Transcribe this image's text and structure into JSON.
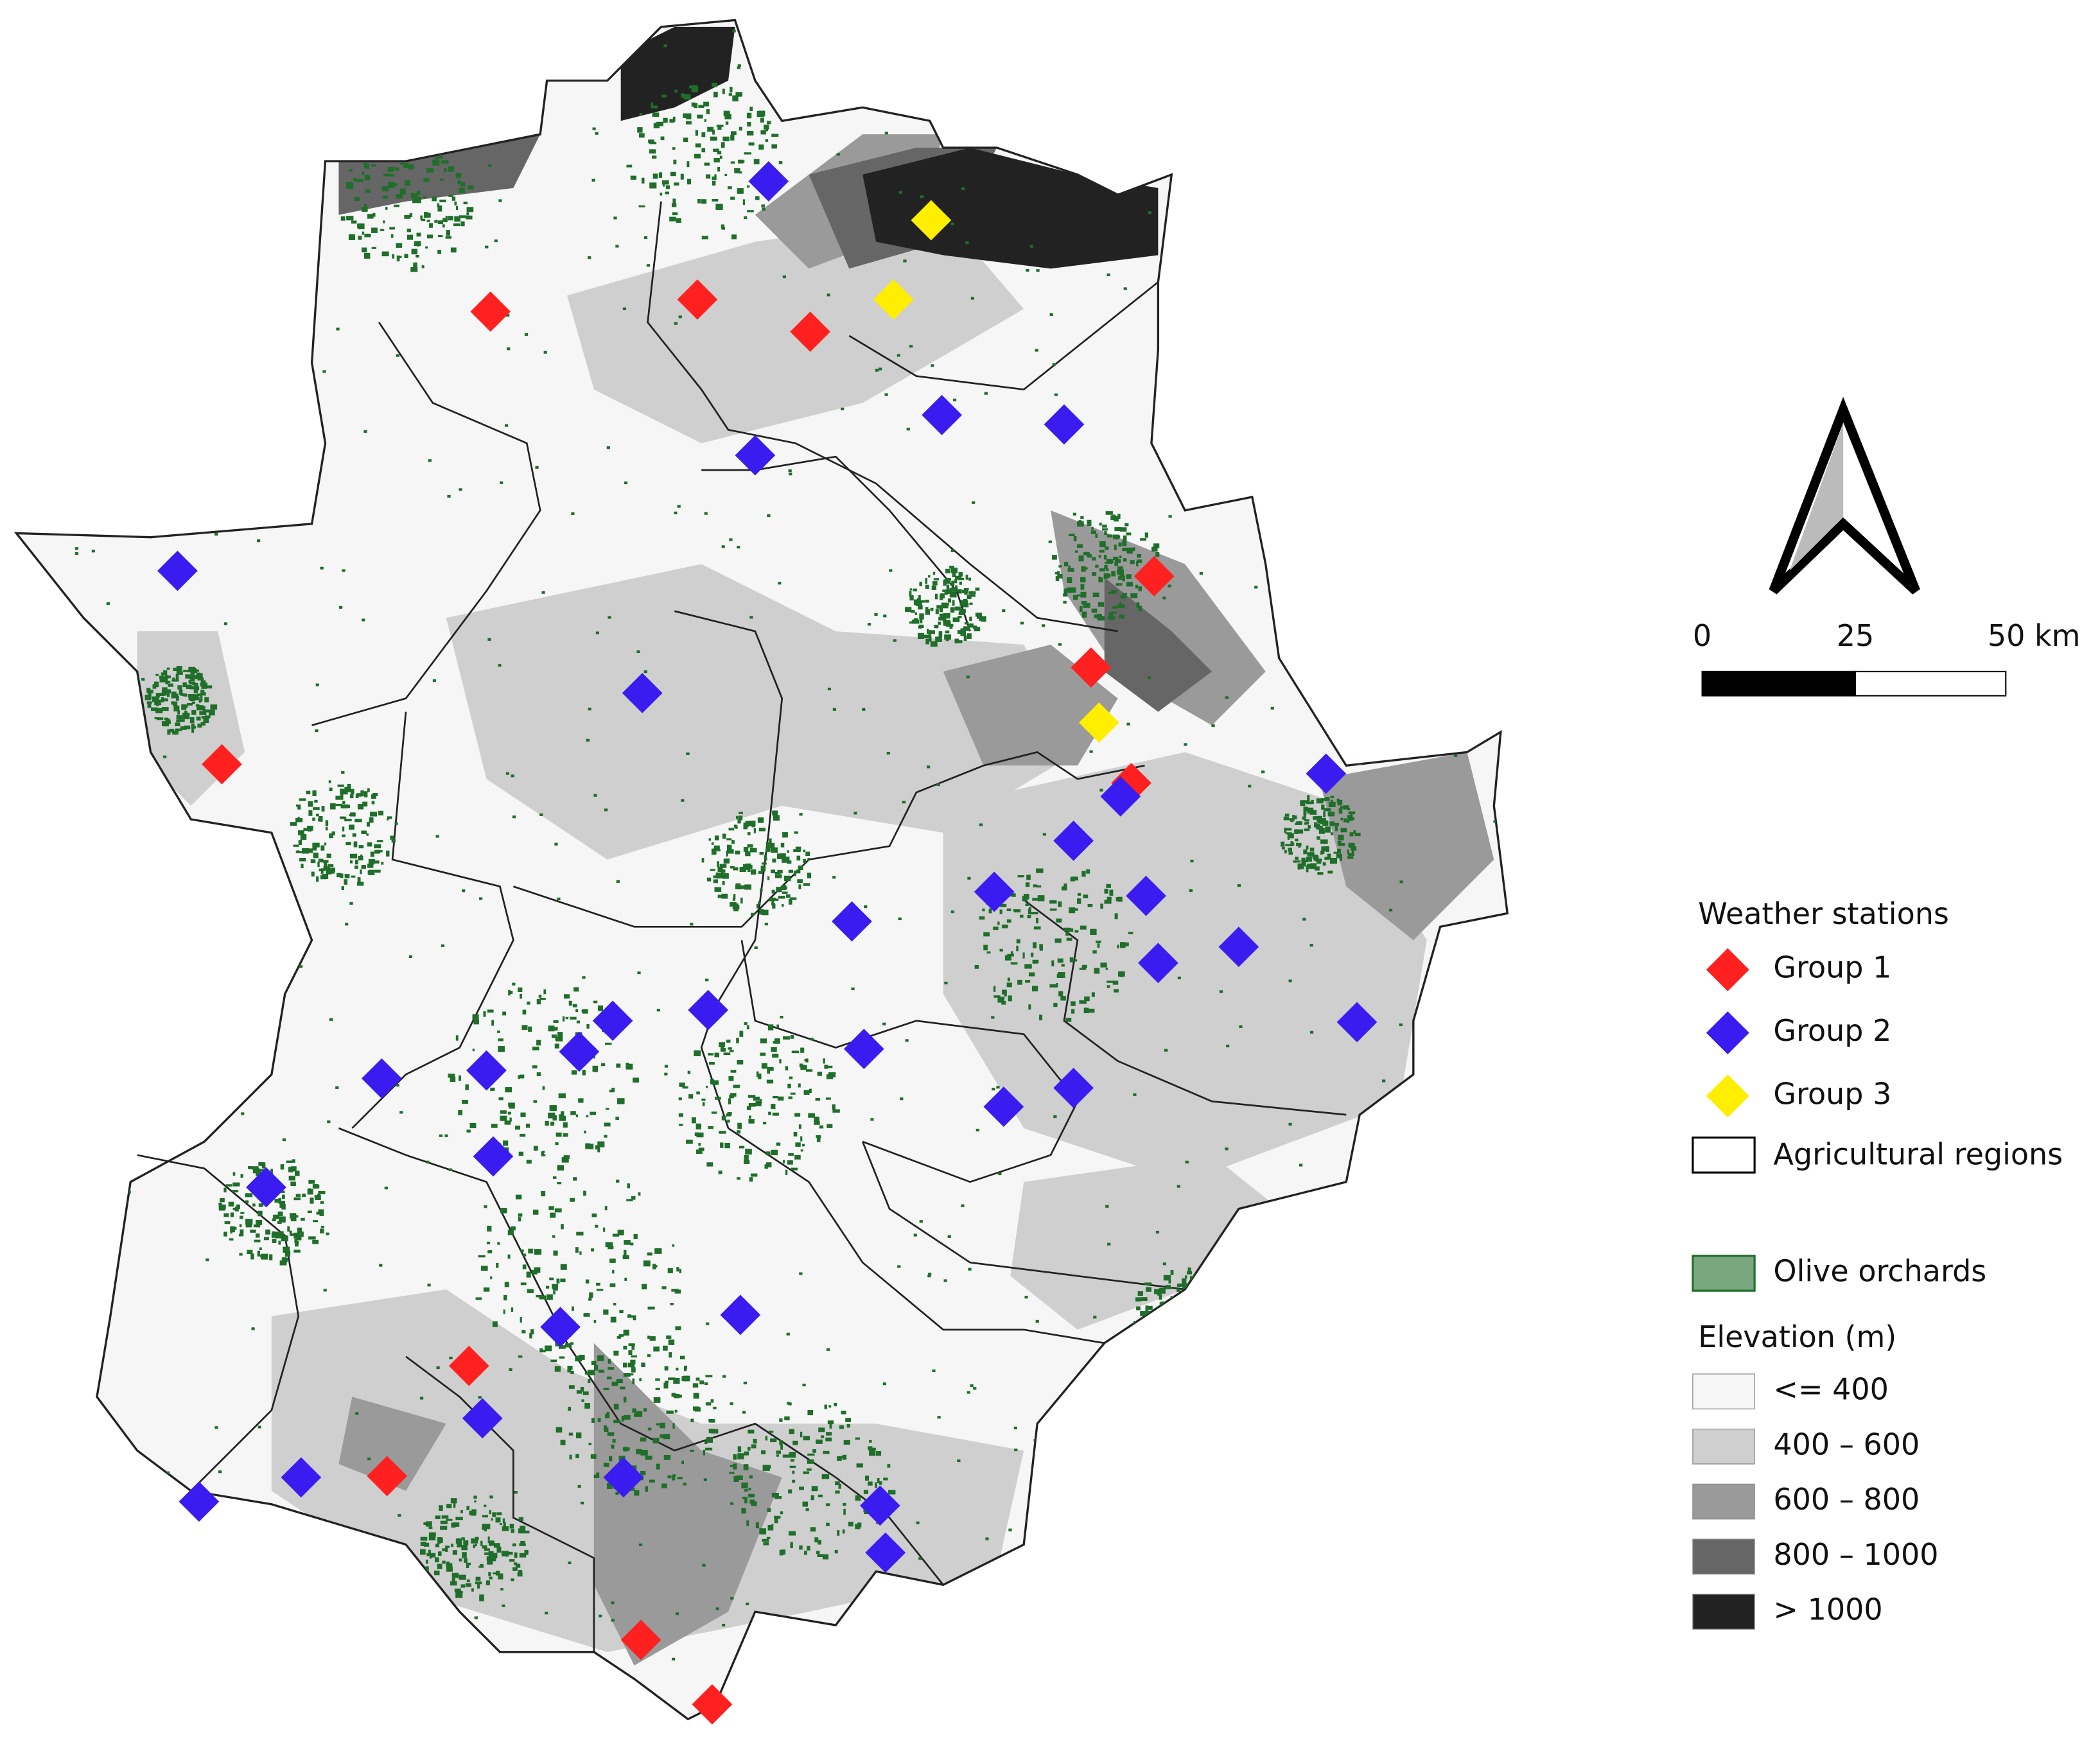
{
  "legend": {
    "stations_title": "Weather stations",
    "groups": [
      {
        "name": "Group 1",
        "color": "#ff2020"
      },
      {
        "name": "Group 2",
        "color": "#3b1cf0"
      },
      {
        "name": "Group 3",
        "color": "#ffee00"
      }
    ],
    "regions": "Agricultural regions",
    "orchards": {
      "name": "Olive orchards",
      "color": "#1f6e2a"
    },
    "elevation_title": "Elevation (m)",
    "elevation_classes": [
      {
        "name": "<= 400",
        "color": "#f6f6f6"
      },
      {
        "name": "400 – 600",
        "color": "#cfcfcf"
      },
      {
        "name": "600 – 800",
        "color": "#9a9a9a"
      },
      {
        "name": "800 – 1000",
        "color": "#666666"
      },
      {
        "name": "> 1000",
        "color": "#222222"
      }
    ]
  },
  "scale_bar": {
    "labels": [
      "0",
      "25",
      "50 km"
    ]
  }
}
